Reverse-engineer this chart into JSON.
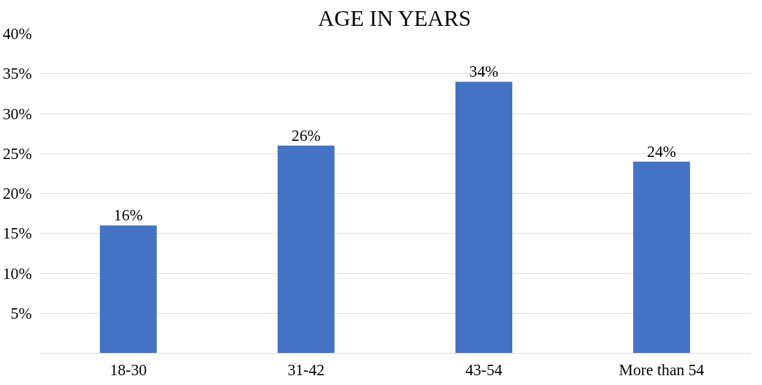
{
  "chart_data": {
    "type": "bar",
    "title": "AGE IN YEARS",
    "categories": [
      "18-30",
      "31-42",
      "43-54",
      "More than 54"
    ],
    "values": [
      16,
      26,
      34,
      24
    ],
    "color": "#4472c4",
    "data_labels": true,
    "value_labels": [
      "16%",
      "26%",
      "34%",
      "24%"
    ],
    "ylim": [
      0,
      40
    ],
    "yticks": [
      {
        "value": 0,
        "label": null
      },
      {
        "value": 5,
        "label": "5%"
      },
      {
        "value": 10,
        "label": "10%"
      },
      {
        "value": 15,
        "label": "15%"
      },
      {
        "value": 20,
        "label": "20%"
      },
      {
        "value": 25,
        "label": "25%"
      },
      {
        "value": 30,
        "label": "30%"
      },
      {
        "value": 35,
        "label": "35%"
      },
      {
        "value": 40,
        "label": "40%"
      }
    ],
    "grid": "y"
  }
}
